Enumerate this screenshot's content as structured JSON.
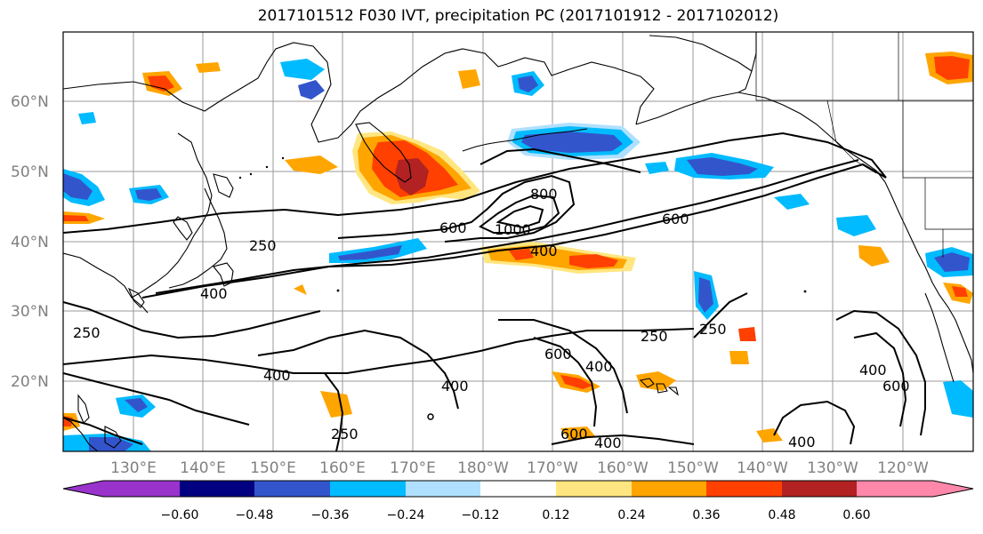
{
  "title": "2017101512 F030 IVT, precipitation PC (2017101912 - 2017102012)",
  "map": {
    "lat_labels": [
      "60°N",
      "50°N",
      "40°N",
      "30°N",
      "20°N"
    ],
    "lon_labels": [
      "130°E",
      "140°E",
      "150°E",
      "160°E",
      "170°E",
      "180°W",
      "170°W",
      "160°W",
      "150°W",
      "140°W",
      "130°W",
      "120°W"
    ]
  },
  "ivt_contours": {
    "labels": [
      "250",
      "250",
      "250",
      "250",
      "250",
      "400",
      "400",
      "400",
      "400",
      "400",
      "400",
      "400",
      "400",
      "600",
      "600",
      "600",
      "600",
      "600",
      "800",
      "1000"
    ]
  },
  "colorbar": {
    "ticks": [
      "−0.60",
      "−0.48",
      "−0.36",
      "−0.24",
      "−0.12",
      "0.12",
      "0.24",
      "0.36",
      "0.48",
      "0.60"
    ],
    "colors": [
      "#9933cc",
      "#000080",
      "#3355cc",
      "#00bbff",
      "#b0e0ff",
      "#ffffff",
      "#ffe680",
      "#ffa500",
      "#ff4000",
      "#b22222",
      "#ff88aa"
    ]
  }
}
